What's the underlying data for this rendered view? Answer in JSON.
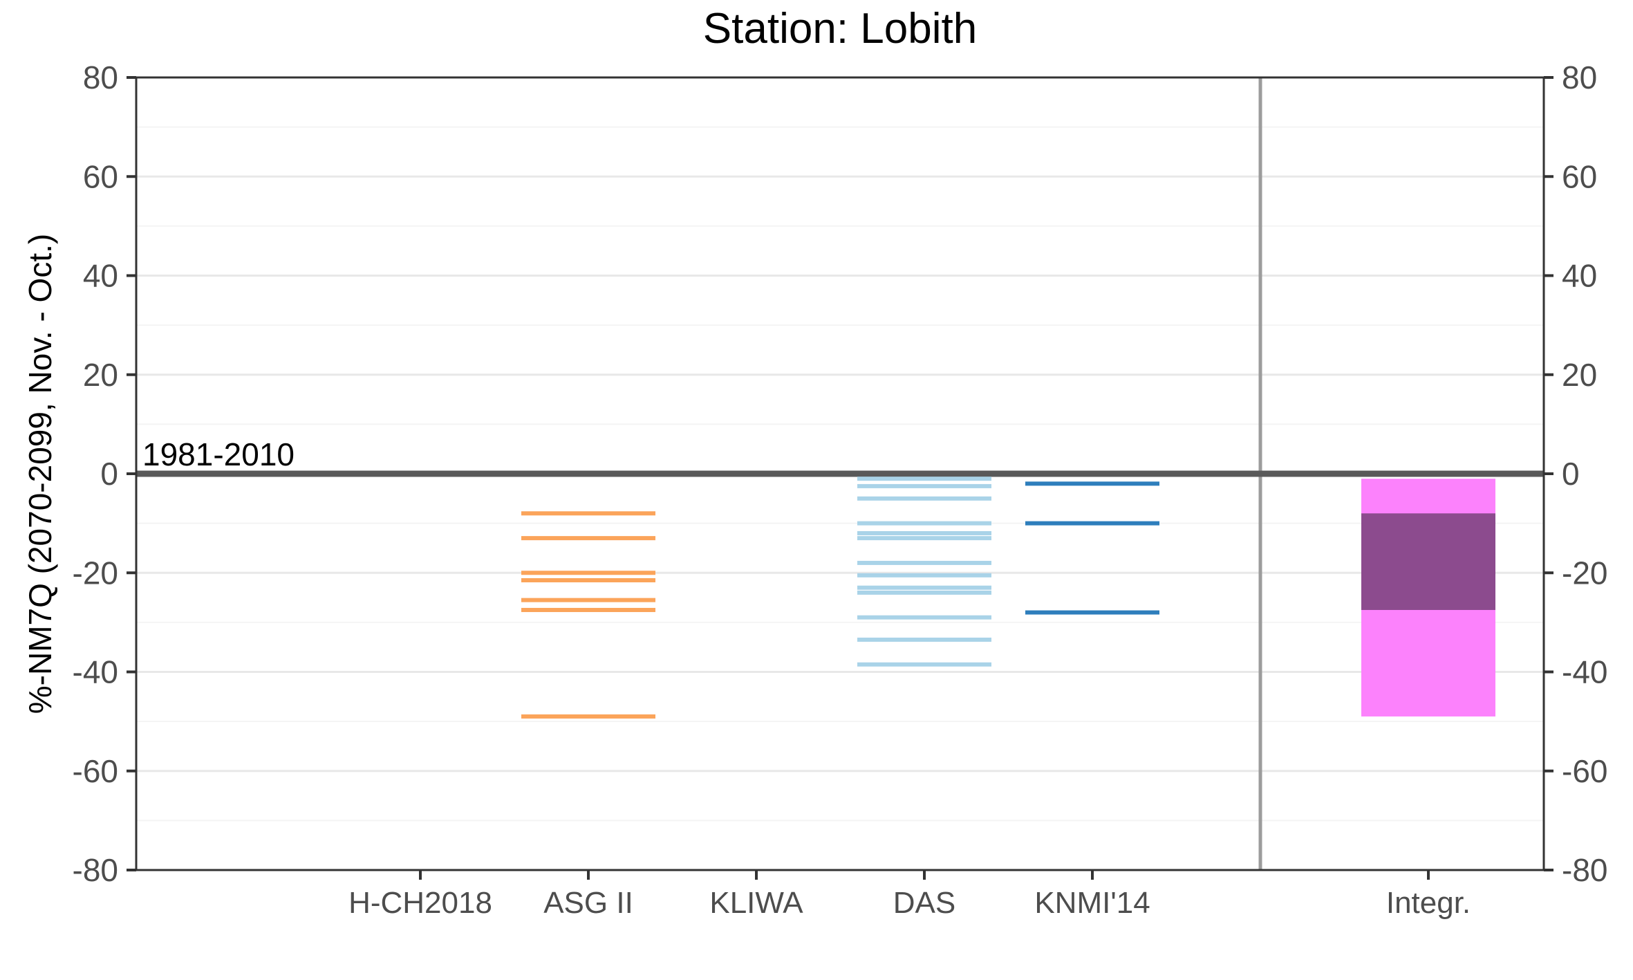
{
  "title": "Station: Lobith",
  "y_axis_label": "%-NM7Q (2070-2099, Nov. - Oct.)",
  "reference_label": "1981-2010",
  "chart_data": {
    "type": "scatter",
    "marker": "horizontal-line-ensemble",
    "title": "Station: Lobith",
    "xlabel": "",
    "ylabel": "%-NM7Q (2070-2099, Nov. - Oct.)",
    "ylim": [
      -80,
      80
    ],
    "yticks": [
      80,
      60,
      40,
      20,
      0,
      -20,
      -40,
      -60,
      -80
    ],
    "grid": "on",
    "legend": "none",
    "reference_line": {
      "label": "1981-2010",
      "value": 0
    },
    "separator_position": 6,
    "categories": [
      "H-CH2018",
      "ASG II",
      "KLIWA",
      "DAS",
      "KNMI'14",
      "Integr."
    ],
    "series": [
      {
        "name": "H-CH2018",
        "position": 1,
        "color": "#FBA45A",
        "values": []
      },
      {
        "name": "ASG II",
        "position": 2,
        "color": "#FBA45A",
        "values": [
          -8,
          -13,
          -20,
          -21.5,
          -25.5,
          -27.5,
          -49
        ]
      },
      {
        "name": "KLIWA",
        "position": 3,
        "color": "#A9D3E8",
        "values": []
      },
      {
        "name": "DAS",
        "position": 4,
        "color": "#A9D3E8",
        "values": [
          -1,
          -2.5,
          -5,
          -10,
          -12,
          -13,
          -18,
          -20.5,
          -23,
          -24,
          -29,
          -33.5,
          -38.5
        ]
      },
      {
        "name": "KNMI'14",
        "position": 5,
        "color": "#2E7EBC",
        "values": [
          -2,
          -10,
          -28
        ]
      }
    ],
    "integrated_box": {
      "name": "Integr.",
      "position": 7,
      "outer_range": [
        -1,
        -49
      ],
      "inner_range": [
        -8,
        -27.5
      ],
      "outer_color": "#FC82FC",
      "inner_color": "#8C4B8E"
    },
    "colors": {
      "axis_border": "#333333",
      "tick_mark": "#333333",
      "tick_label": "#4D4D4D",
      "grid_major": "#E8E8E8",
      "grid_minor": "#F4F4F4",
      "zero_line": "#595959",
      "separator_line": "#9C9C9C",
      "background": "#FFFFFF"
    }
  }
}
